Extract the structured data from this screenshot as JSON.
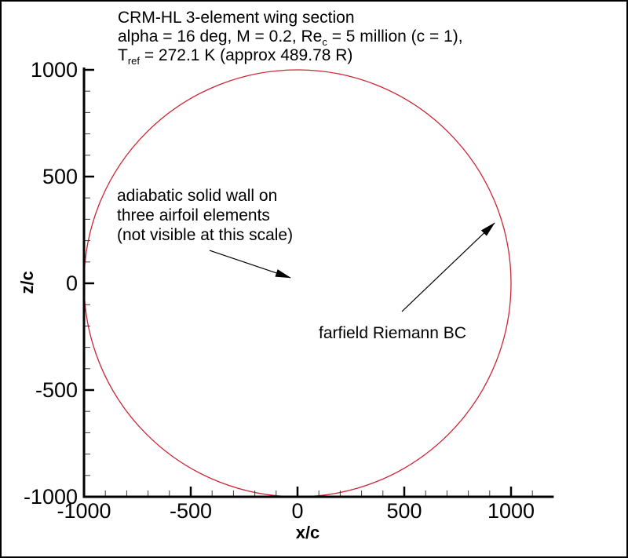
{
  "window": {
    "background": "#ffffff",
    "border_color": "#000000"
  },
  "title": {
    "line1": "CRM-HL 3-element wing section",
    "line2_pre": "alpha = 16 deg, M = 0.2, Re",
    "line2_sub": "c",
    "line2_post": " = 5 million (c = 1),",
    "line3_pre": "T",
    "line3_sub": "ref",
    "line3_post": " = 272.1 K (approx 489.78 R)"
  },
  "chart_data": {
    "type": "line",
    "description": "Schematic of computational domain: circular farfield boundary of radius 1000 chords centered on the airfoil at the origin",
    "xlabel": "x/c",
    "ylabel": "z/c",
    "xlim": [
      -1000,
      1200
    ],
    "ylim": [
      -1000,
      1000
    ],
    "x_major_ticks": [
      -1000,
      -500,
      0,
      500,
      1000
    ],
    "x_major_tick_labels": [
      "-1000",
      "-500",
      "0",
      "500",
      "1000"
    ],
    "y_major_ticks": [
      -1000,
      -500,
      0,
      500,
      1000
    ],
    "y_major_tick_labels": [
      "-1000",
      "-500",
      "0",
      "500",
      "1000"
    ],
    "minor_tick_step": 100,
    "grid": false,
    "legend": null,
    "series": [
      {
        "name": "farfield boundary circle",
        "shape": "circle",
        "center": [
          0,
          0
        ],
        "radius": 1000,
        "color": "#cc2636"
      }
    ],
    "annotations": [
      {
        "name": "wall-annotation",
        "text_lines": [
          "adiabatic solid wall on",
          "three airfoil elements",
          "(not visible at this scale)"
        ],
        "arrow_from": [
          -412,
          154
        ],
        "arrow_to": [
          -33,
          26
        ]
      },
      {
        "name": "farfield-annotation",
        "text_lines": [
          "farfield Riemann BC"
        ],
        "arrow_from": [
          489,
          -132
        ],
        "arrow_to": [
          923,
          283
        ]
      }
    ]
  },
  "colors": {
    "axis": "#000000",
    "minor_tick": "#3c3c3c",
    "circle": "#cc2636",
    "text": "#000000"
  }
}
